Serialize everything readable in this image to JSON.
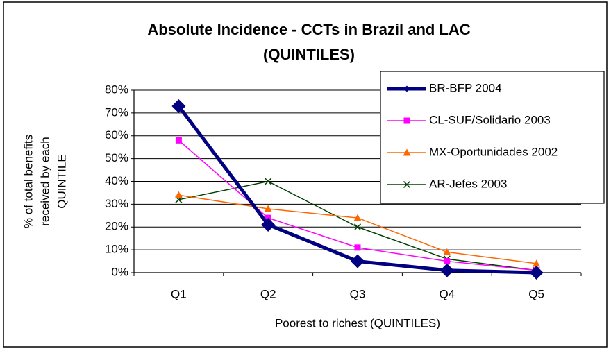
{
  "chart_data": {
    "type": "line",
    "title": [
      "Absolute Incidence - CCTs in Brazil and LAC",
      "(QUINTILES)"
    ],
    "y_label": [
      "% of total benefits",
      "received by each",
      "QUINTILE"
    ],
    "x_label": "Poorest to richest (QUINTILES)",
    "categories": [
      "Q1",
      "Q2",
      "Q3",
      "Q4",
      "Q5"
    ],
    "series": [
      {
        "name": "BR-BFP 2004",
        "color": "#000080",
        "marker": "diamond",
        "values": [
          73,
          21,
          5,
          1,
          0
        ]
      },
      {
        "name": "CL-SUF/Solidario  2003",
        "color": "#ff00ff",
        "marker": "square",
        "values": [
          58,
          24,
          11,
          5,
          1
        ]
      },
      {
        "name": "MX-Oportunidades 2002",
        "color": "#ff6600",
        "marker": "triangle",
        "values": [
          34,
          28,
          24,
          9,
          4
        ]
      },
      {
        "name": "AR-Jefes 2003",
        "color": "#004000",
        "marker": "x",
        "values": [
          32,
          40,
          20,
          6,
          1
        ]
      }
    ],
    "ylim": [
      0,
      80
    ],
    "yticks": [
      {
        "value": 0,
        "label": "0%"
      },
      {
        "value": 10,
        "label": "10%"
      },
      {
        "value": 20,
        "label": "20%"
      },
      {
        "value": 30,
        "label": "30%"
      },
      {
        "value": 40,
        "label": "40%"
      },
      {
        "value": 50,
        "label": "50%"
      },
      {
        "value": 60,
        "label": "60%"
      },
      {
        "value": 70,
        "label": "70%"
      },
      {
        "value": 80,
        "label": "80%"
      }
    ],
    "grid": true,
    "legend": "upper right"
  }
}
